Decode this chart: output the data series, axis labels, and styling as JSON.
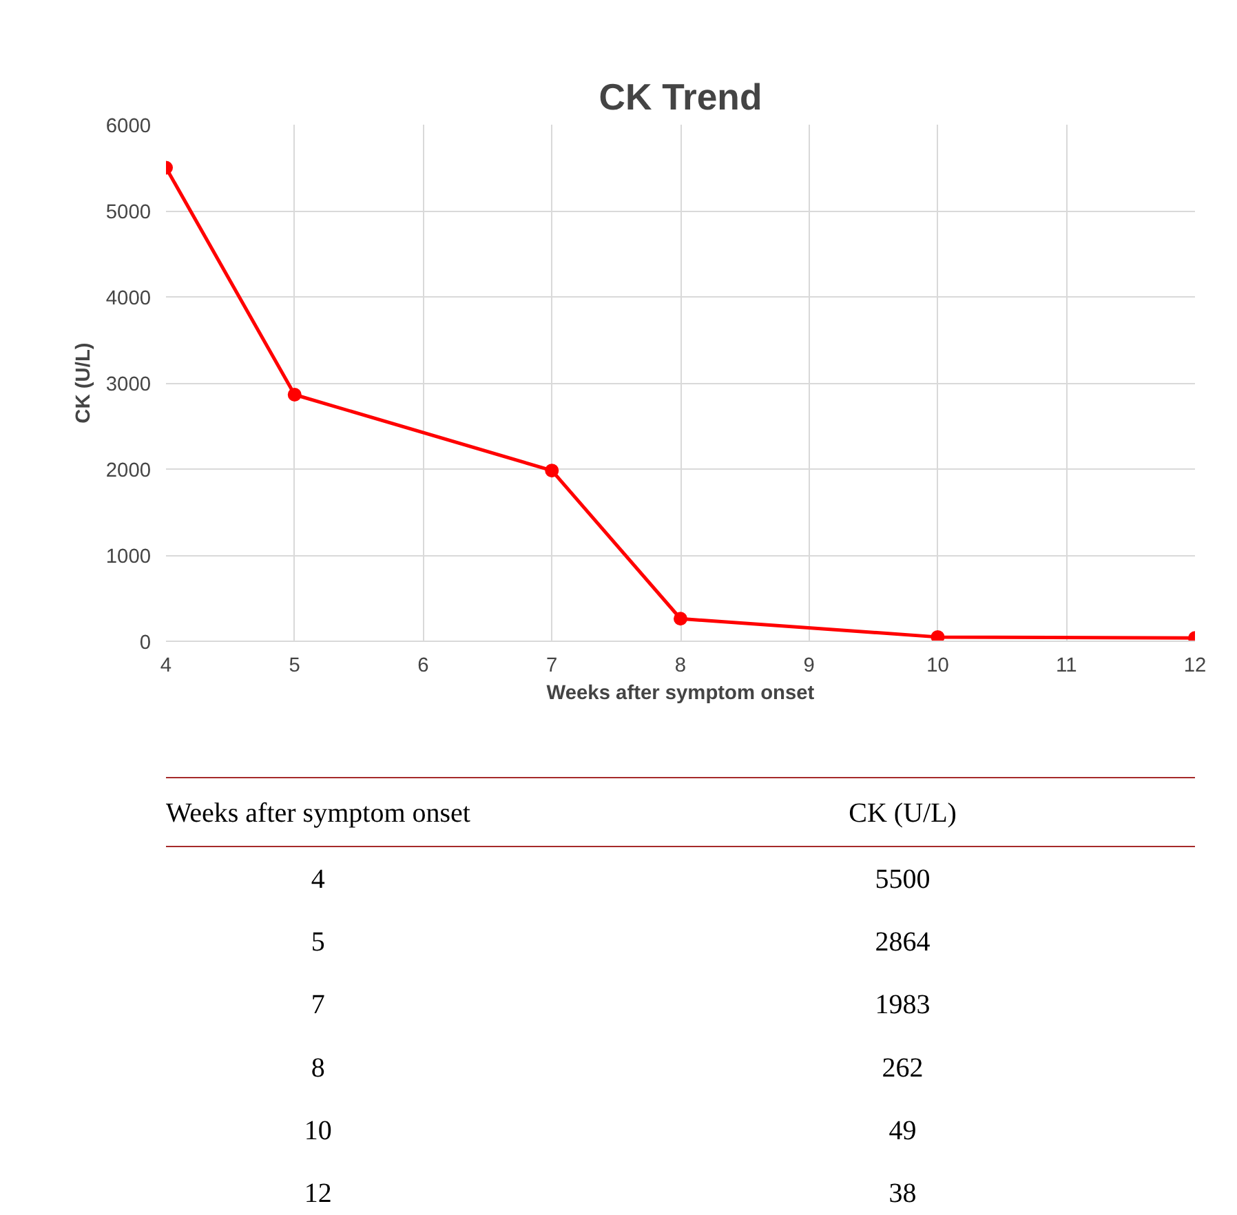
{
  "chart_data": [
    {
      "type": "line",
      "title": "CK Trend",
      "xlabel": "Weeks after symptom onset",
      "ylabel": "CK (U/L)",
      "x": [
        4,
        5,
        7,
        8,
        10,
        12
      ],
      "series": [
        {
          "color": "#ff0000",
          "values": [
            5500,
            2864,
            1983,
            262,
            49,
            38
          ]
        }
      ],
      "xlim": [
        4,
        12
      ],
      "xticks": [
        4,
        5,
        6,
        7,
        8,
        9,
        10,
        11,
        12
      ],
      "ylim": [
        0,
        6000
      ],
      "yticks": [
        0,
        1000,
        2000,
        3000,
        4000,
        5000,
        6000
      ],
      "grid": true,
      "marker": "circle",
      "line_style": "solid"
    },
    {
      "type": "other",
      "annotations": [
        "Weeks after symptom onset",
        "CK (U/L)",
        "4",
        "5500",
        "5",
        "2864",
        "7",
        "1983",
        "8",
        "262",
        "10",
        "49",
        "12",
        "38"
      ]
    }
  ]
}
